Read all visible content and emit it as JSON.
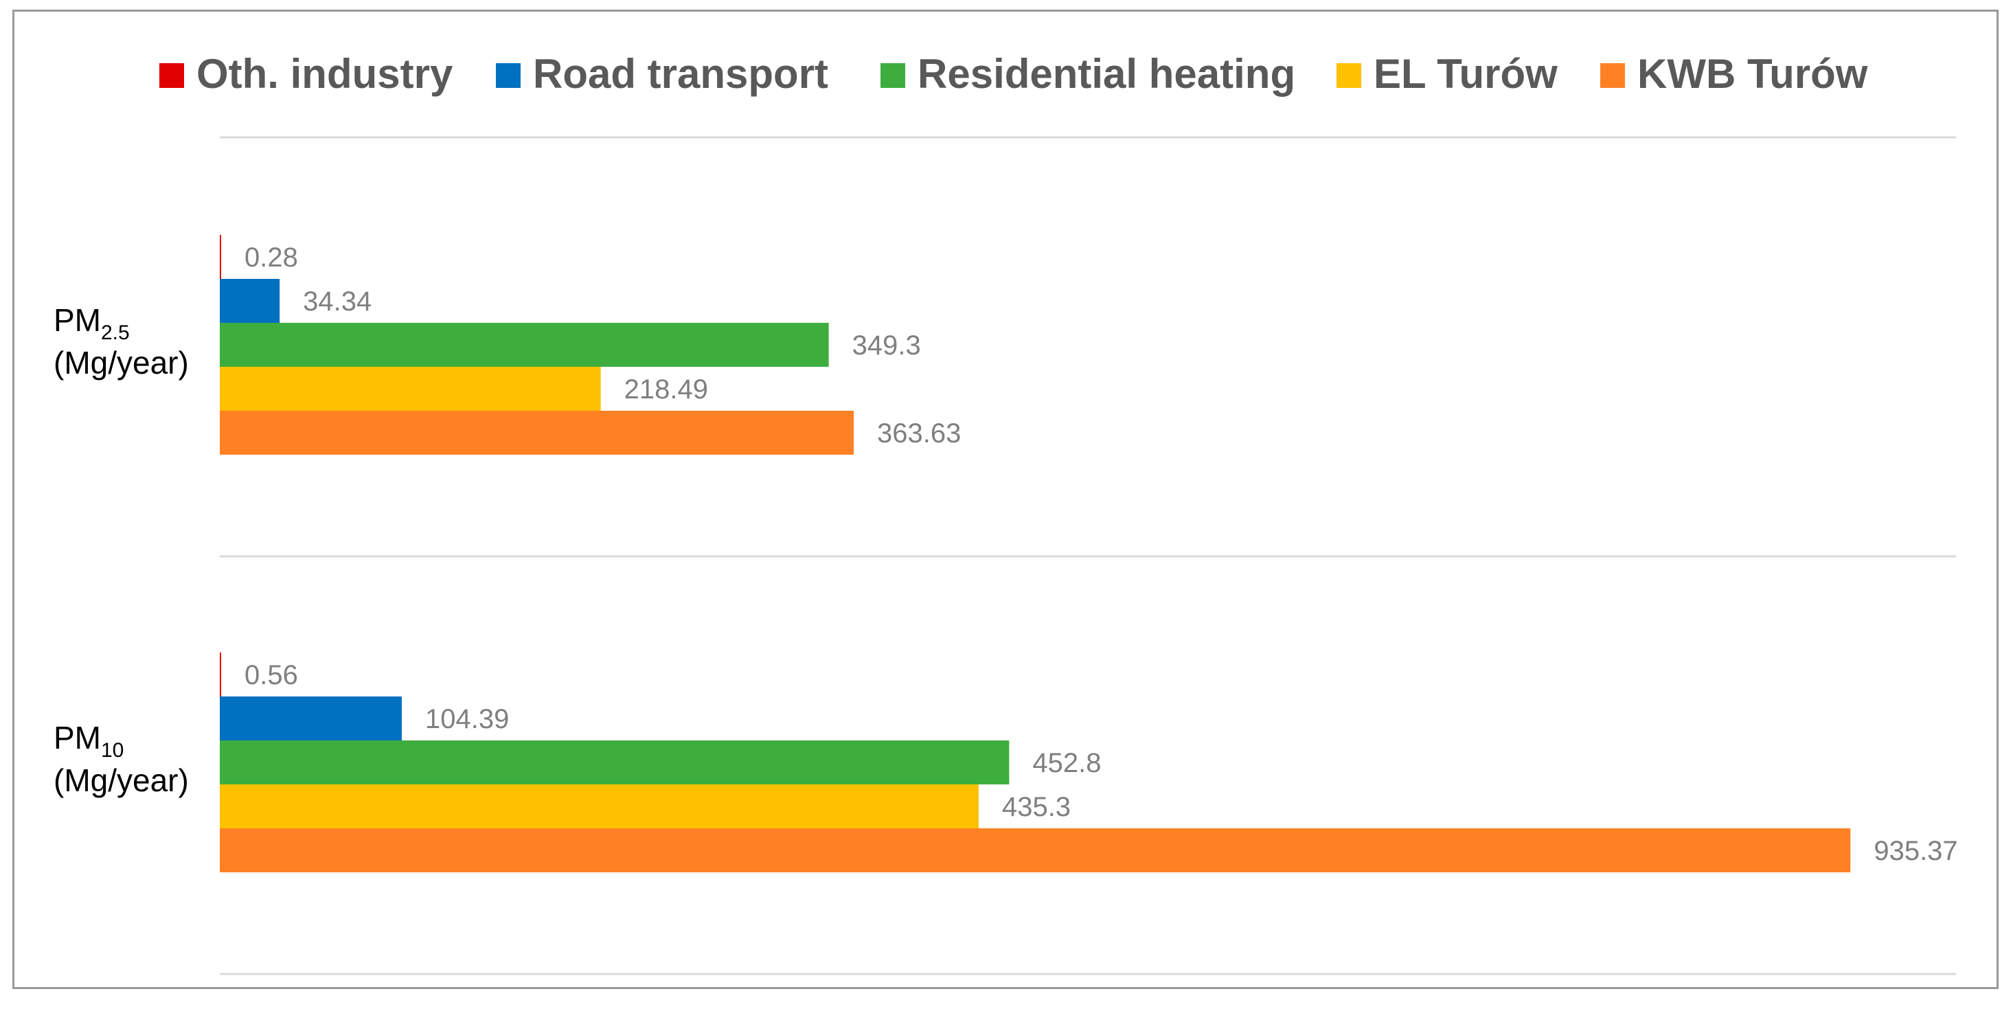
{
  "chart_data": {
    "type": "bar",
    "orientation": "horizontal",
    "categories": [
      {
        "main": "PM",
        "sub": "2.5",
        "unit": "(Mg/year)"
      },
      {
        "main": "PM",
        "sub": "10",
        "unit": "(Mg/year)"
      }
    ],
    "series": [
      {
        "name": "Oth. industry",
        "color": "#e00000",
        "values": [
          0.28,
          0.56
        ],
        "labels": [
          "0.28",
          "0.56"
        ]
      },
      {
        "name": "Road transport",
        "color": "#0070c0",
        "values": [
          34.34,
          104.39
        ],
        "labels": [
          "34.34",
          "104.39"
        ]
      },
      {
        "name": "Residential heating",
        "color": "#3dae3d",
        "values": [
          349.3,
          452.8
        ],
        "labels": [
          "349.3",
          "452.8"
        ]
      },
      {
        "name": "EL Turów",
        "color": "#ffc000",
        "values": [
          218.49,
          435.3
        ],
        "labels": [
          "218.49",
          "435.3"
        ]
      },
      {
        "name": "KWB Turów",
        "color": "#ff8124",
        "values": [
          363.63,
          935.37
        ],
        "labels": [
          "363.63",
          "935.37"
        ]
      }
    ],
    "xlim": [
      0,
      1000
    ],
    "legend": "top",
    "grid": "horizontal separators",
    "title": "",
    "xlabel": "",
    "ylabel": ""
  }
}
